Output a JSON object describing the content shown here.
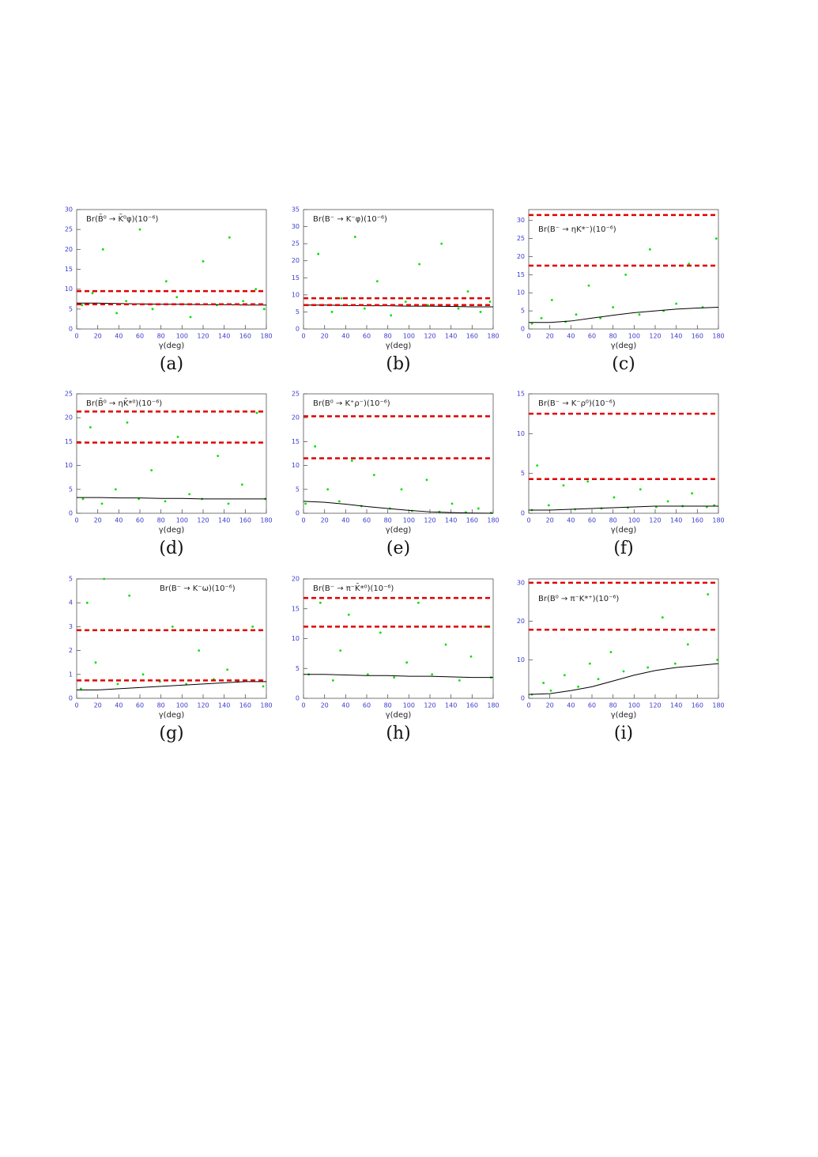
{
  "chart_data": [
    {
      "type": "scatter",
      "title": "Br(B̄⁰ → K̄⁰φ)(10⁻⁶)",
      "xlabel": "γ(deg)",
      "caption": "(a)",
      "xlim": [
        0,
        180
      ],
      "xticks": [
        0,
        20,
        40,
        60,
        80,
        100,
        120,
        140,
        160,
        180
      ],
      "ylim": [
        0,
        30
      ],
      "yticks": [
        0,
        5,
        10,
        15,
        20,
        25,
        30
      ],
      "points": {
        "color": "#00e000",
        "x": [
          5,
          15,
          25,
          38,
          47,
          60,
          72,
          85,
          95,
          108,
          120,
          133,
          145,
          158,
          170,
          178
        ],
        "values": [
          6,
          9,
          20,
          4,
          7,
          25,
          5,
          12,
          8,
          3,
          17,
          6,
          23,
          7,
          10,
          5
        ]
      },
      "curve": {
        "color": "#000000",
        "x": [
          0,
          20,
          40,
          60,
          80,
          100,
          120,
          140,
          160,
          180
        ],
        "values": [
          6.5,
          6.5,
          6.4,
          6.3,
          6.2,
          6.2,
          6.1,
          6.1,
          6,
          6
        ]
      },
      "hlines": {
        "color": "#e00000",
        "values": [
          9.5,
          6.2
        ]
      }
    },
    {
      "type": "scatter",
      "title": "Br(B⁻ → K⁻φ)(10⁻⁶)",
      "xlabel": "γ(deg)",
      "caption": "(b)",
      "xlim": [
        0,
        180
      ],
      "xticks": [
        0,
        20,
        40,
        60,
        80,
        100,
        120,
        140,
        160,
        180
      ],
      "ylim": [
        0,
        35
      ],
      "yticks": [
        0,
        5,
        10,
        15,
        20,
        25,
        30,
        35
      ],
      "points": {
        "color": "#00e000",
        "x": [
          4,
          14,
          27,
          36,
          49,
          58,
          70,
          83,
          97,
          110,
          118,
          131,
          147,
          156,
          168,
          177
        ],
        "values": [
          7,
          22,
          5,
          9,
          27,
          6,
          14,
          4,
          8,
          19,
          7,
          25,
          6,
          11,
          5,
          8
        ]
      },
      "curve": {
        "color": "#000000",
        "x": [
          0,
          20,
          40,
          60,
          80,
          100,
          120,
          140,
          160,
          180
        ],
        "values": [
          7,
          7,
          6.9,
          6.8,
          6.8,
          6.7,
          6.7,
          6.6,
          6.5,
          6.5
        ]
      },
      "hlines": {
        "color": "#e00000",
        "values": [
          9,
          7
        ]
      }
    },
    {
      "type": "scatter",
      "title": "Br(B⁻ → ηK*⁻)(10⁻⁶)",
      "xlabel": "γ(deg)",
      "caption": "(c)",
      "xlim": [
        0,
        180
      ],
      "xticks": [
        0,
        20,
        40,
        60,
        80,
        100,
        120,
        140,
        160,
        180
      ],
      "ylim": [
        0,
        33
      ],
      "yticks": [
        0,
        5,
        10,
        15,
        20,
        25,
        30
      ],
      "points": {
        "color": "#00e000",
        "x": [
          3,
          12,
          22,
          35,
          45,
          57,
          68,
          80,
          92,
          105,
          115,
          128,
          140,
          152,
          165,
          178
        ],
        "values": [
          1.5,
          3,
          8,
          2,
          4,
          12,
          3,
          6,
          15,
          4,
          22,
          5,
          7,
          18,
          6,
          25
        ]
      },
      "curve": {
        "color": "#000000",
        "x": [
          0,
          20,
          40,
          60,
          80,
          100,
          120,
          140,
          160,
          180
        ],
        "values": [
          1.8,
          1.8,
          2.2,
          3,
          3.8,
          4.5,
          5,
          5.5,
          5.8,
          6
        ]
      },
      "hlines": {
        "color": "#e00000",
        "values": [
          31.5,
          17.5
        ]
      }
    },
    {
      "type": "scatter",
      "title": "Br(B̄⁰ → ηK̄*⁰)(10⁻⁶)",
      "xlabel": "γ(deg)",
      "caption": "(d)",
      "xlim": [
        0,
        180
      ],
      "xticks": [
        0,
        20,
        40,
        60,
        80,
        100,
        120,
        140,
        160,
        180
      ],
      "ylim": [
        0,
        25
      ],
      "yticks": [
        0,
        5,
        10,
        15,
        20,
        25
      ],
      "points": {
        "color": "#00e000",
        "x": [
          6,
          13,
          24,
          37,
          48,
          59,
          71,
          84,
          96,
          107,
          119,
          134,
          144,
          157,
          171,
          179
        ],
        "values": [
          3,
          18,
          2,
          5,
          19,
          3,
          9,
          2.5,
          16,
          4,
          3,
          12,
          2,
          6,
          21,
          3
        ]
      },
      "curve": {
        "color": "#000000",
        "x": [
          0,
          20,
          40,
          60,
          80,
          100,
          120,
          140,
          160,
          180
        ],
        "values": [
          3.3,
          3.3,
          3.2,
          3.2,
          3.1,
          3.1,
          3,
          3,
          3,
          3
        ]
      },
      "hlines": {
        "color": "#e00000",
        "values": [
          21.3,
          14.8
        ]
      }
    },
    {
      "type": "scatter",
      "title": "Br(B⁰ → K⁺ρ⁻)(10⁻⁶)",
      "xlabel": "γ(deg)",
      "caption": "(e)",
      "xlim": [
        0,
        180
      ],
      "xticks": [
        0,
        20,
        40,
        60,
        80,
        100,
        120,
        140,
        160,
        180
      ],
      "ylim": [
        0,
        25
      ],
      "yticks": [
        0,
        5,
        10,
        15,
        20,
        25
      ],
      "points": {
        "color": "#00e000",
        "x": [
          2,
          11,
          23,
          34,
          46,
          55,
          67,
          82,
          93,
          103,
          117,
          129,
          141,
          154,
          166,
          178
        ],
        "values": [
          2,
          14,
          5,
          2.5,
          11,
          1.5,
          8,
          1,
          5,
          0.5,
          7,
          0.3,
          2,
          0.2,
          1,
          0.1
        ]
      },
      "curve": {
        "color": "#000000",
        "x": [
          0,
          20,
          40,
          60,
          80,
          100,
          120,
          140,
          160,
          180
        ],
        "values": [
          2.5,
          2.3,
          1.9,
          1.4,
          1,
          0.6,
          0.3,
          0.15,
          0.05,
          0
        ]
      },
      "hlines": {
        "color": "#e00000",
        "values": [
          20.3,
          11.5
        ]
      }
    },
    {
      "type": "scatter",
      "title": "Br(B⁻ → K⁻ρ⁰)(10⁻⁶)",
      "xlabel": "γ(deg)",
      "caption": "(f)",
      "xlim": [
        0,
        180
      ],
      "xticks": [
        0,
        20,
        40,
        60,
        80,
        100,
        120,
        140,
        160,
        180
      ],
      "ylim": [
        0,
        15
      ],
      "yticks": [
        0,
        5,
        10,
        15
      ],
      "points": {
        "color": "#00e000",
        "x": [
          3,
          8,
          19,
          33,
          44,
          56,
          69,
          81,
          94,
          106,
          121,
          132,
          146,
          155,
          169,
          176
        ],
        "values": [
          0.4,
          6,
          1,
          3.5,
          0.5,
          4,
          0.6,
          2,
          0.7,
          3,
          0.8,
          1.5,
          0.9,
          2.5,
          0.8,
          1
        ]
      },
      "curve": {
        "color": "#000000",
        "x": [
          0,
          20,
          40,
          60,
          80,
          100,
          120,
          140,
          160,
          180
        ],
        "values": [
          0.4,
          0.4,
          0.5,
          0.6,
          0.7,
          0.8,
          0.9,
          0.9,
          0.9,
          0.9
        ]
      },
      "hlines": {
        "color": "#e00000",
        "values": [
          12.5,
          4.3
        ]
      }
    },
    {
      "type": "scatter",
      "title": "Br(B⁻ → K⁻ω)(10⁻⁶)",
      "xlabel": "γ(deg)",
      "caption": "(g)",
      "xlim": [
        0,
        180
      ],
      "xticks": [
        0,
        20,
        40,
        60,
        80,
        100,
        120,
        140,
        160,
        180
      ],
      "ylim": [
        0,
        5
      ],
      "yticks": [
        0,
        1,
        2,
        3,
        4,
        5
      ],
      "points": {
        "color": "#00e000",
        "x": [
          4,
          10,
          18,
          26,
          39,
          50,
          63,
          79,
          91,
          104,
          116,
          130,
          143,
          153,
          167,
          177
        ],
        "values": [
          0.4,
          4,
          1.5,
          5,
          0.6,
          4.3,
          1,
          0.7,
          3,
          0.6,
          2,
          0.8,
          1.2,
          0.7,
          3,
          0.5
        ]
      },
      "curve": {
        "color": "#000000",
        "x": [
          0,
          20,
          40,
          60,
          80,
          100,
          120,
          140,
          160,
          180
        ],
        "values": [
          0.35,
          0.35,
          0.4,
          0.45,
          0.5,
          0.55,
          0.6,
          0.65,
          0.7,
          0.7
        ]
      },
      "hlines": {
        "color": "#e00000",
        "values": [
          2.85,
          0.75
        ]
      }
    },
    {
      "type": "scatter",
      "title": "Br(B⁻ → π⁻K̄*⁰)(10⁻⁶)",
      "xlabel": "γ(deg)",
      "caption": "(h)",
      "xlim": [
        0,
        180
      ],
      "xticks": [
        0,
        20,
        40,
        60,
        80,
        100,
        120,
        140,
        160,
        180
      ],
      "ylim": [
        0,
        20
      ],
      "yticks": [
        0,
        5,
        10,
        15,
        20
      ],
      "points": {
        "color": "#00e000",
        "x": [
          5,
          16,
          28,
          35,
          43,
          61,
          73,
          86,
          98,
          109,
          122,
          135,
          148,
          159,
          172,
          178
        ],
        "values": [
          4,
          16,
          3,
          8,
          14,
          4,
          11,
          3.5,
          6,
          16,
          4,
          9,
          3,
          7,
          12,
          3.5
        ]
      },
      "curve": {
        "color": "#000000",
        "x": [
          0,
          20,
          40,
          60,
          80,
          100,
          120,
          140,
          160,
          180
        ],
        "values": [
          4,
          4,
          3.9,
          3.8,
          3.8,
          3.7,
          3.7,
          3.6,
          3.5,
          3.5
        ]
      },
      "hlines": {
        "color": "#e00000",
        "values": [
          16.8,
          12
        ]
      }
    },
    {
      "type": "scatter",
      "title": "Br(B⁰ → π⁻K*⁺)(10⁻⁶)",
      "xlabel": "γ(deg)",
      "caption": "(i)",
      "xlim": [
        0,
        180
      ],
      "xticks": [
        0,
        20,
        40,
        60,
        80,
        100,
        120,
        140,
        160,
        180
      ],
      "ylim": [
        0,
        31
      ],
      "yticks": [
        0,
        10,
        20,
        30
      ],
      "points": {
        "color": "#00e000",
        "x": [
          3,
          14,
          21,
          34,
          47,
          58,
          66,
          78,
          90,
          101,
          113,
          127,
          139,
          151,
          170,
          179
        ],
        "values": [
          1,
          4,
          2,
          6,
          3,
          9,
          5,
          12,
          7,
          18,
          8,
          21,
          9,
          14,
          27,
          10
        ]
      },
      "curve": {
        "color": "#000000",
        "x": [
          0,
          20,
          40,
          60,
          80,
          100,
          120,
          140,
          160,
          180
        ],
        "values": [
          1,
          1.2,
          2,
          3,
          4.5,
          6,
          7.2,
          8,
          8.5,
          9
        ]
      },
      "hlines": {
        "color": "#e00000",
        "values": [
          30,
          17.8
        ]
      }
    }
  ]
}
